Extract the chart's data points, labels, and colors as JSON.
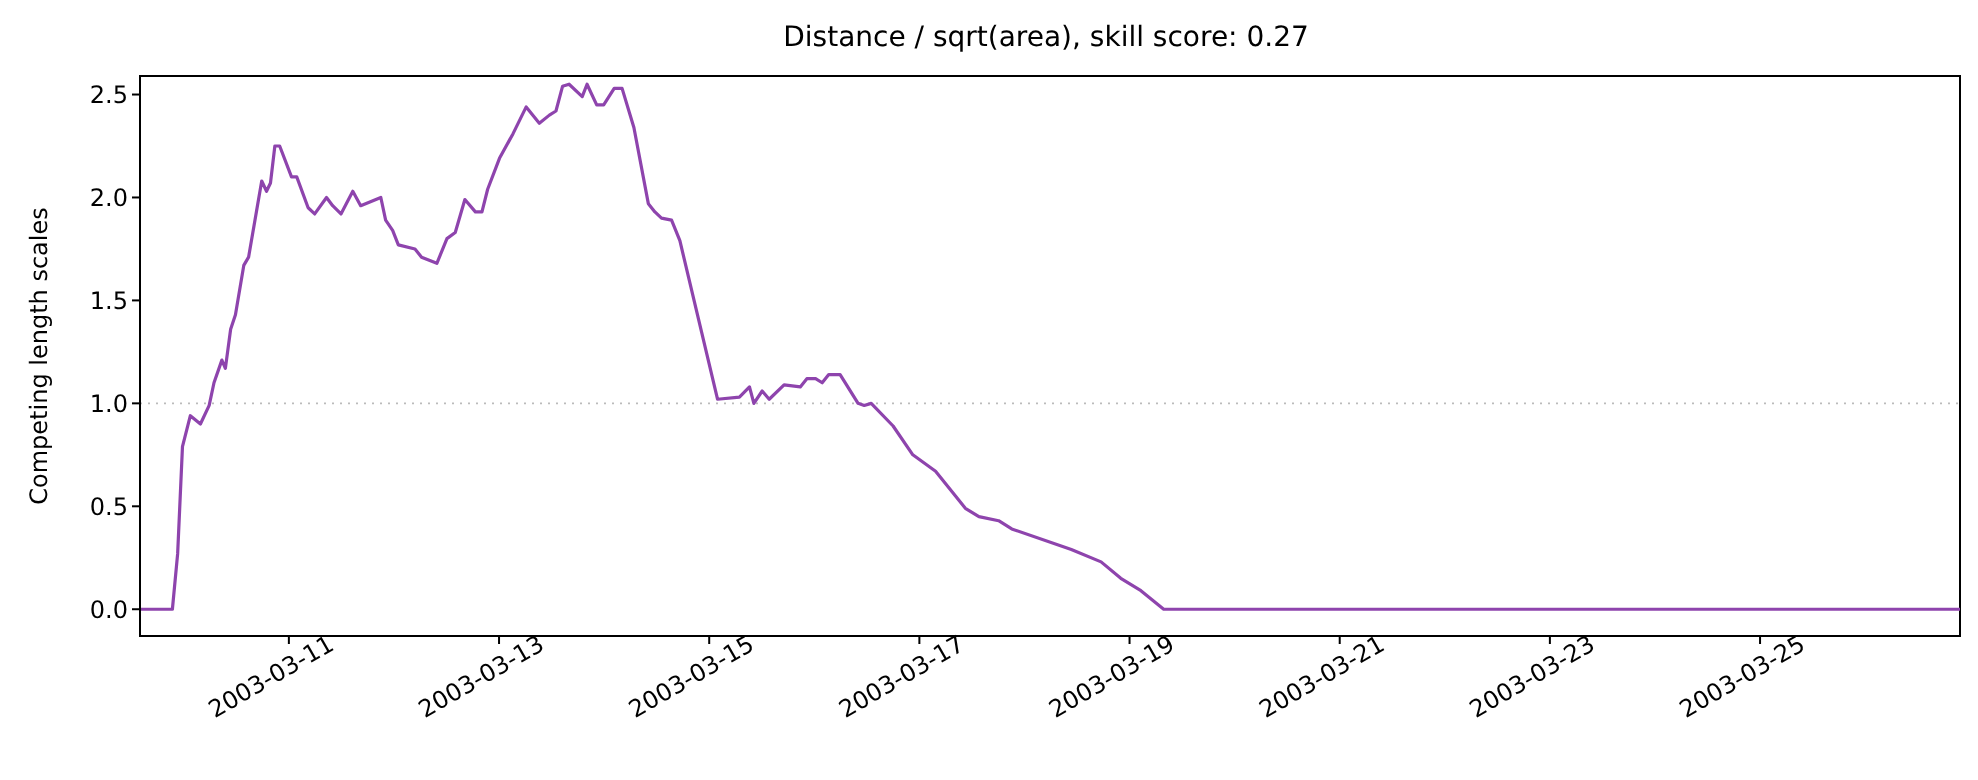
{
  "chart_data": {
    "type": "line",
    "title": "Distance / sqrt(area), skill score: 0.27",
    "ylabel": "Competing length scales",
    "x": [
      "2003-03-09T14:00",
      "2003-03-09T21:24",
      "2003-03-09T22:36",
      "2003-03-09T23:42",
      "2003-03-10T01:30",
      "2003-03-10T03:48",
      "2003-03-10T05:48",
      "2003-03-10T06:54",
      "2003-03-10T08:42",
      "2003-03-10T09:30",
      "2003-03-10T10:42",
      "2003-03-10T11:48",
      "2003-03-10T13:42",
      "2003-03-10T14:48",
      "2003-03-10T17:48",
      "2003-03-10T18:54",
      "2003-03-10T19:48",
      "2003-03-10T20:48",
      "2003-03-10T21:54",
      "2003-03-11T00:36",
      "2003-03-11T01:48",
      "2003-03-11T04:24",
      "2003-03-11T05:54",
      "2003-03-11T08:36",
      "2003-03-11T10:00",
      "2003-03-11T11:54",
      "2003-03-11T14:36",
      "2003-03-11T16:24",
      "2003-03-11T21:00",
      "2003-03-11T22:06",
      "2003-03-11T23:42",
      "2003-03-12T01:00",
      "2003-03-12T04:48",
      "2003-03-12T06:18",
      "2003-03-12T09:48",
      "2003-03-12T12:06",
      "2003-03-12T14:00",
      "2003-03-12T16:12",
      "2003-03-12T18:36",
      "2003-03-12T20:06",
      "2003-03-12T21:24",
      "2003-03-13T00:06",
      "2003-03-13T03:12",
      "2003-03-13T06:12",
      "2003-03-13T09:12",
      "2003-03-13T11:30",
      "2003-03-13T13:00",
      "2003-03-13T14:30",
      "2003-03-13T16:00",
      "2003-03-13T19:00",
      "2003-03-13T20:06",
      "2003-03-13T22:18",
      "2003-03-13T23:54",
      "2003-03-14T02:18",
      "2003-03-14T04:06",
      "2003-03-14T06:48",
      "2003-03-14T10:06",
      "2003-03-14T11:36",
      "2003-03-14T13:06",
      "2003-03-14T15:24",
      "2003-03-14T17:18",
      "2003-03-15T01:54",
      "2003-03-15T06:54",
      "2003-03-15T09:12",
      "2003-03-15T10:12",
      "2003-03-15T12:06",
      "2003-03-15T13:42",
      "2003-03-15T17:06",
      "2003-03-15T20:48",
      "2003-03-15T22:18",
      "2003-03-16T00:18",
      "2003-03-16T01:48",
      "2003-03-16T03:18",
      "2003-03-16T05:54",
      "2003-03-16T10:00",
      "2003-03-16T11:24",
      "2003-03-16T13:00",
      "2003-03-16T18:00",
      "2003-03-16T22:30",
      "2003-03-17T03:42",
      "2003-03-17T10:30",
      "2003-03-17T13:36",
      "2003-03-17T18:06",
      "2003-03-17T21:06",
      "2003-03-18T10:42",
      "2003-03-18T17:30",
      "2003-03-18T22:00",
      "2003-03-19T02:36",
      "2003-03-19T07:48",
      "2003-03-26T21:40"
    ],
    "series": [
      {
        "color": "#8e44ad",
        "values": [
          0,
          0,
          0.27,
          0.79,
          0.94,
          0.9,
          0.99,
          1.1,
          1.21,
          1.17,
          1.36,
          1.43,
          1.67,
          1.71,
          2.08,
          2.03,
          2.07,
          2.25,
          2.25,
          2.1,
          2.1,
          1.95,
          1.92,
          2.0,
          1.96,
          1.92,
          2.03,
          1.96,
          2.0,
          1.89,
          1.84,
          1.77,
          1.75,
          1.71,
          1.68,
          1.8,
          1.83,
          1.99,
          1.93,
          1.93,
          2.04,
          2.19,
          2.31,
          2.44,
          2.36,
          2.4,
          2.42,
          2.54,
          2.55,
          2.49,
          2.55,
          2.45,
          2.45,
          2.53,
          2.53,
          2.34,
          1.97,
          1.93,
          1.9,
          1.89,
          1.79,
          1.02,
          1.03,
          1.08,
          1.0,
          1.06,
          1.02,
          1.09,
          1.08,
          1.12,
          1.12,
          1.1,
          1.14,
          1.14,
          1.0,
          0.99,
          1.0,
          0.89,
          0.75,
          0.67,
          0.49,
          0.45,
          0.43,
          0.39,
          0.29,
          0.23,
          0.15,
          0.09,
          0,
          0
        ]
      }
    ],
    "xlim": [
      "2003-03-09T14:00",
      "2003-03-26T21:40"
    ],
    "xticks": [
      "2003-03-11",
      "2003-03-13",
      "2003-03-15",
      "2003-03-17",
      "2003-03-19",
      "2003-03-21",
      "2003-03-23",
      "2003-03-25"
    ],
    "ylim": [
      -0.13,
      2.59
    ],
    "yticks": [
      {
        "value": 0,
        "label": "0.0"
      },
      {
        "value": 0.5,
        "label": "0.5"
      },
      {
        "value": 1,
        "label": "1.0"
      },
      {
        "value": 1.5,
        "label": "1.5"
      },
      {
        "value": 2,
        "label": "2.0"
      },
      {
        "value": 2.5,
        "label": "2.5"
      }
    ],
    "ref_lines": [
      {
        "axis": "y",
        "value": 1,
        "color": "#bbbbbb",
        "line_style": "dotted"
      }
    ],
    "grid": false,
    "legend": false,
    "marker": "none",
    "line_style": "solid"
  }
}
